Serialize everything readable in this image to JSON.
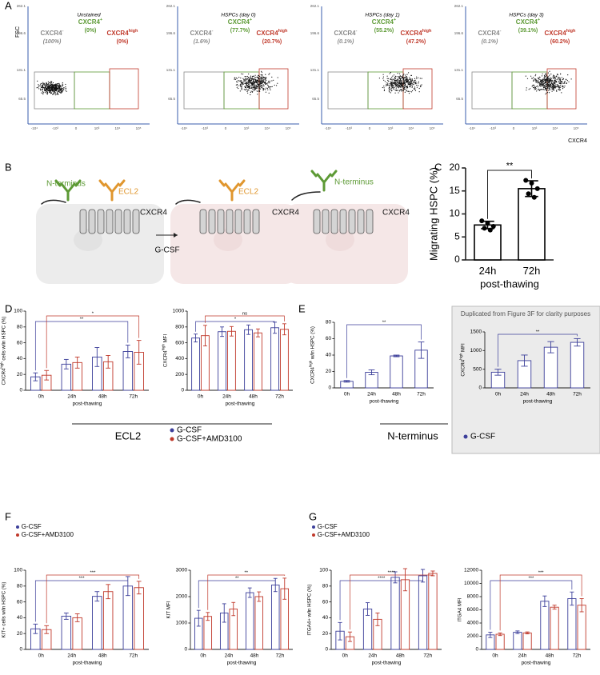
{
  "panel_labels": [
    "A",
    "B",
    "C",
    "D",
    "E",
    "F",
    "G"
  ],
  "flow": {
    "y_label": "FSC",
    "x_label": "CXCR4",
    "y_ticks": [
      "262.1",
      "196.6",
      "131.1",
      "65.5"
    ],
    "x_ticks": [
      "-10⁴",
      "-10³",
      "0",
      "10³",
      "10⁴",
      "10⁵"
    ],
    "gates": [
      [
        "CXCR4",
        "-"
      ],
      [
        "CXCR4",
        "+"
      ],
      [
        "CXCR4",
        "high"
      ]
    ],
    "plots": [
      {
        "title": "Unstained",
        "percentages": [
          "(100%)",
          "(0%)",
          "(0%)"
        ]
      },
      {
        "title": "HSPCs (day 0)",
        "percentages": [
          "(1.6%)",
          "(77.7%)",
          "(20.7%)"
        ]
      },
      {
        "title": "HSPCs (day 1)",
        "percentages": [
          "(0.1%)",
          "(55.2%)",
          "(47.2%)"
        ]
      },
      {
        "title": "HSPCs (day 3)",
        "percentages": [
          "(0.1%)",
          "(39.1%)",
          "(60.2%)"
        ]
      }
    ]
  },
  "receptor_diagram": {
    "cells": [
      {
        "antibodies": [
          "N-terminus",
          "ECL2"
        ],
        "receptor": "CXCR4"
      },
      {
        "antibodies": [
          "ECL2"
        ],
        "receptor": "CXCR4"
      },
      {
        "antibodies": [
          "N-terminus"
        ],
        "receptor": "CXCR4"
      }
    ],
    "treatment": "G-CSF"
  },
  "group_labels": [
    "ECL2",
    "N-terminus"
  ],
  "chart_data": [
    {
      "type": "bar",
      "ylabel": [
        "Migrating HSPC (%)"
      ],
      "xlabel": "post-thawing",
      "categories": [
        "24h",
        "72h"
      ],
      "ylim": [
        0,
        20
      ],
      "yticks": [
        0,
        5,
        10,
        15,
        20
      ],
      "series": [
        {
          "color": "#000000",
          "values": [
            7.6,
            15.5
          ],
          "errors": [
            0.8,
            1.7
          ],
          "points": [
            [
              8.5,
              8.0,
              7.3,
              6.9,
              6.5
            ],
            [
              17.3,
              16.7,
              15.5,
              14.4,
              13.6
            ]
          ]
        }
      ],
      "significance": [
        "**"
      ]
    },
    {
      "type": "bar",
      "ylabel": [
        "CXCR4",
        "high",
        " cells w/in HSPC (%)"
      ],
      "xlabel": "post-thawing",
      "categories": [
        "0h",
        "24h",
        "48h",
        "72h"
      ],
      "ylim": [
        0,
        100
      ],
      "yticks": [
        0,
        20,
        40,
        60,
        80,
        100
      ],
      "series": [
        {
          "name": "G-CSF",
          "color": "#3c3f9a",
          "values": [
            17,
            33,
            42,
            49
          ],
          "errors": [
            5,
            6,
            12,
            8
          ]
        },
        {
          "name": "G-CSF+AMD3100",
          "color": "#c0392b",
          "values": [
            19,
            35,
            36,
            48
          ],
          "errors": [
            6,
            7,
            8,
            15
          ]
        }
      ],
      "significance": [
        "**",
        "*"
      ]
    },
    {
      "type": "bar",
      "ylabel": [
        "CXCR4",
        "high",
        " MFI"
      ],
      "xlabel": "post-thawing",
      "categories": [
        "0h",
        "24h",
        "48h",
        "72h"
      ],
      "ylim": [
        0,
        1000
      ],
      "yticks": [
        0,
        200,
        400,
        600,
        800,
        1000
      ],
      "series": [
        {
          "color": "#3c3f9a",
          "values": [
            660,
            740,
            765,
            790
          ],
          "errors": [
            50,
            60,
            60,
            70
          ]
        },
        {
          "color": "#c0392b",
          "values": [
            690,
            745,
            725,
            770
          ],
          "errors": [
            130,
            60,
            50,
            70
          ]
        }
      ],
      "significance": [
        "*",
        "ns"
      ]
    },
    {
      "type": "bar",
      "ylabel": [
        "CXCR4",
        "high",
        " w/in HSPC (%)"
      ],
      "xlabel": "post-thawing",
      "categories": [
        "0h",
        "24h",
        "48h",
        "72h"
      ],
      "ylim": [
        0,
        80
      ],
      "yticks": [
        0,
        20,
        40,
        60,
        80
      ],
      "series": [
        {
          "name": "G-CSF",
          "color": "#3c3f9a",
          "values": [
            8,
            19,
            39,
            46
          ],
          "errors": [
            1,
            3,
            1,
            10
          ]
        }
      ],
      "significance": [
        "**"
      ]
    },
    {
      "type": "bar",
      "annotation": "Duplicated from Figure 3F for clarity purposes",
      "ylabel": [
        "CXCR4",
        "high",
        " MFI"
      ],
      "xlabel": "post-thawing",
      "categories": [
        "0h",
        "24h",
        "48h",
        "72h"
      ],
      "ylim": [
        0,
        1500
      ],
      "yticks": [
        0,
        500,
        1000,
        1500
      ],
      "series": [
        {
          "color": "#3c3f9a",
          "values": [
            420,
            730,
            1090,
            1220
          ],
          "errors": [
            80,
            150,
            150,
            100
          ]
        }
      ],
      "significance": [
        "**"
      ]
    },
    {
      "type": "bar",
      "ylabel": [
        "KIT+ cells w/in HSPC (%)"
      ],
      "xlabel": "post-thawing",
      "categories": [
        "0h",
        "24h",
        "48h",
        "72h"
      ],
      "ylim": [
        0,
        100
      ],
      "yticks": [
        0,
        20,
        40,
        60,
        80,
        100
      ],
      "series": [
        {
          "name": "G-CSF",
          "color": "#3c3f9a",
          "values": [
            26,
            42,
            67,
            80
          ],
          "errors": [
            6,
            4,
            6,
            12
          ]
        },
        {
          "name": "G-CSF+AMD3100",
          "color": "#c0392b",
          "values": [
            25,
            40,
            73,
            78
          ],
          "errors": [
            5,
            5,
            9,
            8
          ]
        }
      ],
      "significance": [
        "***",
        "***"
      ]
    },
    {
      "type": "bar",
      "ylabel": [
        "KIT MFI"
      ],
      "xlabel": "post-thawing",
      "categories": [
        "0h",
        "24h",
        "48h",
        "72h"
      ],
      "ylim": [
        0,
        3000
      ],
      "yticks": [
        0,
        1000,
        2000,
        3000
      ],
      "series": [
        {
          "color": "#3c3f9a",
          "values": [
            1180,
            1380,
            2150,
            2440
          ],
          "errors": [
            300,
            350,
            180,
            250
          ]
        },
        {
          "color": "#c0392b",
          "values": [
            1250,
            1530,
            2000,
            2300
          ],
          "errors": [
            150,
            250,
            180,
            400
          ]
        }
      ],
      "significance": [
        "**",
        "**"
      ]
    },
    {
      "type": "bar",
      "ylabel": [
        "ITGA4+ w/in HSPC (%)"
      ],
      "xlabel": "post-thawing",
      "categories": [
        "0h",
        "24h",
        "48h",
        "72h"
      ],
      "ylim": [
        0,
        100
      ],
      "yticks": [
        0,
        20,
        40,
        60,
        80,
        100
      ],
      "series": [
        {
          "name": "G-CSF",
          "color": "#3c3f9a",
          "values": [
            23,
            51,
            91,
            93
          ],
          "errors": [
            11,
            8,
            7,
            8
          ]
        },
        {
          "name": "G-CSF+AMD3100",
          "color": "#c0392b",
          "values": [
            16,
            38,
            88,
            96
          ],
          "errors": [
            6,
            8,
            14,
            3
          ]
        }
      ],
      "significance": [
        "****",
        "****"
      ]
    },
    {
      "type": "bar",
      "ylabel": [
        "ITGA4 MFI"
      ],
      "xlabel": "post-thawing",
      "categories": [
        "0h",
        "24h",
        "48h",
        "72h"
      ],
      "ylim": [
        0,
        12000
      ],
      "yticks": [
        0,
        2000,
        4000,
        6000,
        8000,
        10000,
        12000
      ],
      "series": [
        {
          "color": "#3c3f9a",
          "values": [
            2200,
            2600,
            7300,
            7700
          ],
          "errors": [
            400,
            200,
            800,
            1000
          ]
        },
        {
          "color": "#c0392b",
          "values": [
            2300,
            2500,
            6400,
            6700
          ],
          "errors": [
            200,
            150,
            300,
            1000
          ]
        }
      ],
      "significance": [
        "***",
        "***"
      ]
    }
  ]
}
